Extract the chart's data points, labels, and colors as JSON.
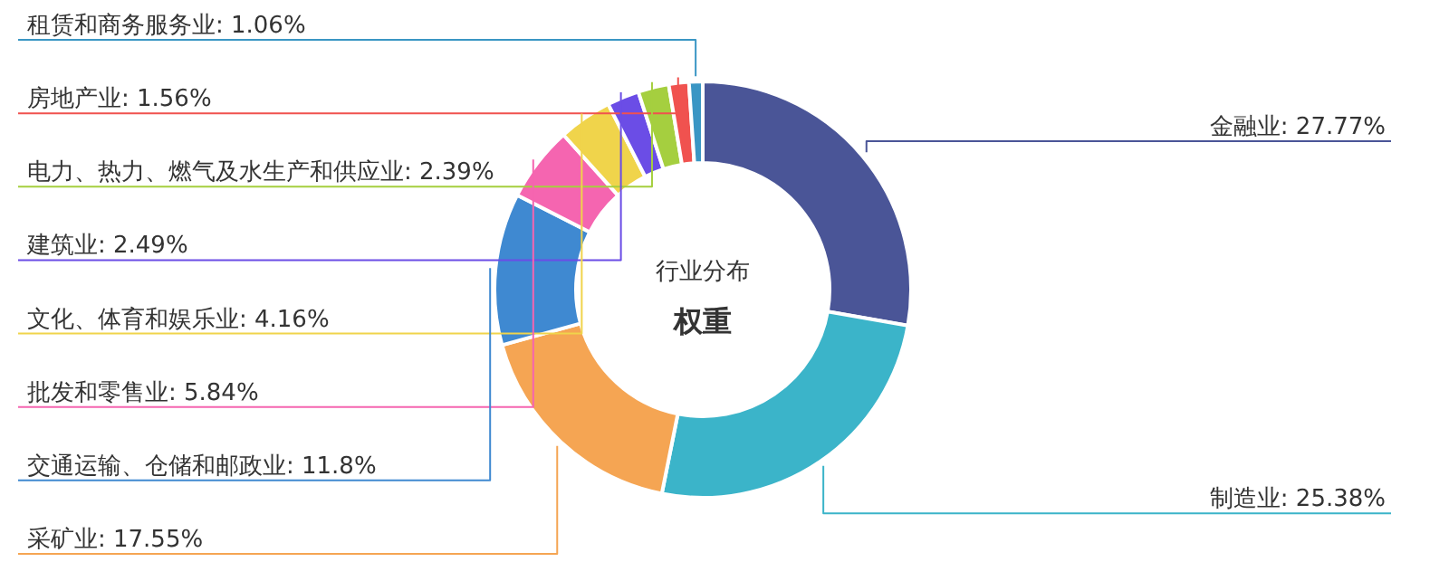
{
  "chart_data": {
    "type": "donut",
    "title": "行业分布",
    "subtitle": "权重",
    "categories": [
      "金融业",
      "制造业",
      "采矿业",
      "交通运输、仓储和邮政业",
      "批发和零售业",
      "文化、体育和娱乐业",
      "建筑业",
      "电力、热力、燃气及水生产和供应业",
      "房地产业",
      "租赁和商务服务业"
    ],
    "values": [
      27.77,
      25.38,
      17.55,
      11.8,
      5.84,
      4.16,
      2.49,
      2.39,
      1.56,
      1.06
    ],
    "value_labels": [
      "27.77%",
      "25.38%",
      "17.55%",
      "11.8%",
      "5.84%",
      "4.16%",
      "2.49%",
      "2.39%",
      "1.56%",
      "1.06%"
    ],
    "colors": [
      "#4a5597",
      "#3bb4c9",
      "#f5a553",
      "#3f89d1",
      "#f565b0",
      "#f0d44b",
      "#6b4de6",
      "#a5cf3f",
      "#f0524f",
      "#3a96c4"
    ]
  }
}
